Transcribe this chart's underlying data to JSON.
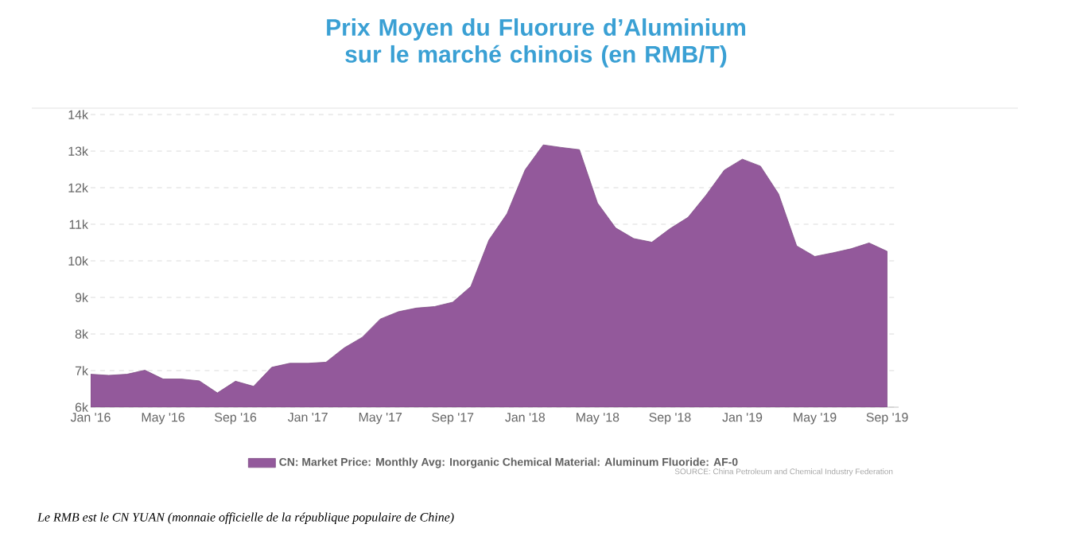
{
  "chart_data": {
    "type": "area",
    "title": "Prix Moyen du Fluorure d’Aluminium sur le marché chinois (en RMB/T)",
    "x": [
      "2016-01",
      "2016-02",
      "2016-03",
      "2016-04",
      "2016-05",
      "2016-06",
      "2016-07",
      "2016-08",
      "2016-09",
      "2016-10",
      "2016-11",
      "2016-12",
      "2017-01",
      "2017-02",
      "2017-03",
      "2017-04",
      "2017-05",
      "2017-06",
      "2017-07",
      "2017-08",
      "2017-09",
      "2017-10",
      "2017-11",
      "2017-12",
      "2018-01",
      "2018-02",
      "2018-03",
      "2018-04",
      "2018-05",
      "2018-06",
      "2018-07",
      "2018-08",
      "2018-09",
      "2018-10",
      "2018-11",
      "2018-12",
      "2019-01",
      "2019-02",
      "2019-03",
      "2019-04",
      "2019-05",
      "2019-06",
      "2019-07",
      "2019-08",
      "2019-09"
    ],
    "series": [
      {
        "name": "CN: Market Price: Monthly Avg: Inorganic Chemical Material: Aluminum Fluoride: AF-0",
        "color": "#93599b",
        "values": [
          6900,
          6870,
          6900,
          7010,
          6770,
          6770,
          6720,
          6390,
          6710,
          6570,
          7090,
          7200,
          7200,
          7230,
          7620,
          7910,
          8410,
          8610,
          8710,
          8750,
          8870,
          9300,
          10570,
          11290,
          12490,
          13170,
          13100,
          13040,
          11580,
          10900,
          10610,
          10510,
          10880,
          11190,
          11800,
          12480,
          12780,
          12590,
          11830,
          10410,
          10120,
          10220,
          10330,
          10490,
          10260
        ]
      }
    ],
    "xlim": [
      "2016-01",
      "2019-09-20"
    ],
    "ylim": [
      6000,
      14000
    ],
    "xticks": [
      {
        "value": "2016-01",
        "label": "Jan '16"
      },
      {
        "value": "2016-05",
        "label": "May '16"
      },
      {
        "value": "2016-09",
        "label": "Sep '16"
      },
      {
        "value": "2017-01",
        "label": "Jan '17"
      },
      {
        "value": "2017-05",
        "label": "May '17"
      },
      {
        "value": "2017-09",
        "label": "Sep '17"
      },
      {
        "value": "2018-01",
        "label": "Jan '18"
      },
      {
        "value": "2018-05",
        "label": "May '18"
      },
      {
        "value": "2018-09",
        "label": "Sep '18"
      },
      {
        "value": "2019-01",
        "label": "Jan '19"
      },
      {
        "value": "2019-05",
        "label": "May '19"
      },
      {
        "value": "2019-09",
        "label": "Sep '19"
      }
    ],
    "yticks": [
      {
        "value": 6000,
        "label": "6k"
      },
      {
        "value": 7000,
        "label": "7k"
      },
      {
        "value": 8000,
        "label": "8k"
      },
      {
        "value": 9000,
        "label": "9k"
      },
      {
        "value": 10000,
        "label": "10k"
      },
      {
        "value": 11000,
        "label": "11k"
      },
      {
        "value": 12000,
        "label": "12k"
      },
      {
        "value": 13000,
        "label": "13k"
      },
      {
        "value": 14000,
        "label": "14k"
      }
    ],
    "grid": "y",
    "legend": "bottom",
    "annotations": [
      "SOURCE: China Petroleum and Chemical Industry Federation",
      "Le RMB est le CN YUAN (monnaie officielle de la république populaire de Chine)"
    ]
  }
}
